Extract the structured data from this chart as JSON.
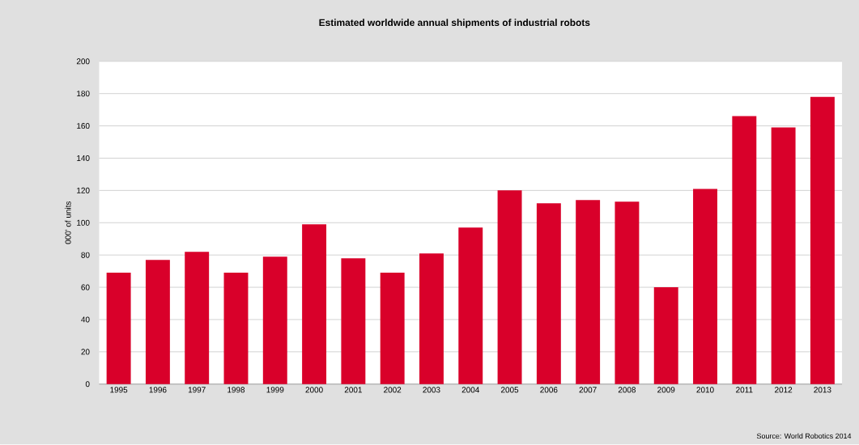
{
  "chart_data": {
    "type": "bar",
    "title": "Estimated worldwide annual shipments of industrial robots",
    "ylabel": "000' of units",
    "categories": [
      "1995",
      "1996",
      "1997",
      "1998",
      "1999",
      "2000",
      "2001",
      "2002",
      "2003",
      "2004",
      "2005",
      "2006",
      "2007",
      "2008",
      "2009",
      "2010",
      "2011",
      "2012",
      "2013"
    ],
    "values": [
      69,
      77,
      82,
      69,
      79,
      99,
      78,
      69,
      81,
      97,
      120,
      112,
      114,
      113,
      60,
      121,
      166,
      159,
      178
    ],
    "color": "#d9002a",
    "ylim": [
      0,
      200
    ],
    "yticks": [
      0,
      20,
      40,
      60,
      80,
      100,
      120,
      140,
      160,
      180,
      200
    ],
    "grid": "y",
    "annotations": [
      "Source: World Robotics 2014"
    ]
  }
}
